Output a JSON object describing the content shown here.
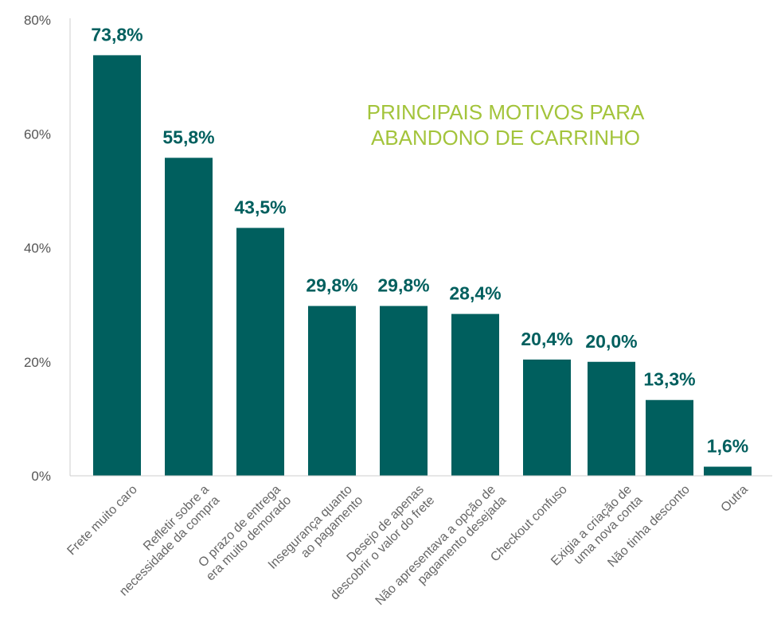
{
  "chart_data": {
    "type": "bar",
    "title": [
      "PRINCIPAIS MOTIVOS PARA",
      "ABANDONO DE CARRINHO"
    ],
    "xlabel": "",
    "ylabel": "",
    "ylim": [
      0,
      80
    ],
    "yticks": [
      "0%",
      "20%",
      "40%",
      "60%",
      "80%"
    ],
    "ytick_values": [
      0,
      20,
      40,
      60,
      80
    ],
    "grid": false,
    "categories": [
      [
        "Frete muito caro"
      ],
      [
        "Refletir sobre a",
        "necessidade da compra"
      ],
      [
        "O prazo de entrega",
        "era muito demorado"
      ],
      [
        "Insegurança quanto",
        "ao pagamento"
      ],
      [
        "Desejo de apenas",
        "descobrir o valor do frete"
      ],
      [
        "Não apresentava a opção de",
        "pagamento desejada"
      ],
      [
        "Checkout confuso"
      ],
      [
        "Exigia a criação de",
        "uma nova conta"
      ],
      [
        "Não tinha desconto"
      ],
      [
        "Outra"
      ]
    ],
    "values": [
      73.8,
      55.8,
      43.5,
      29.8,
      29.8,
      28.4,
      20.4,
      20.0,
      13.3,
      1.6
    ],
    "data_labels": [
      "73,8%",
      "55,8%",
      "43,5%",
      "29,8%",
      "29,8%",
      "28,4%",
      "20,4%",
      "20,0%",
      "13,3%",
      "1,6%"
    ],
    "colors": {
      "bar": "#005f5e",
      "label": "#005f5e",
      "title": "#a3c43b",
      "axis": "#cccccc"
    }
  }
}
